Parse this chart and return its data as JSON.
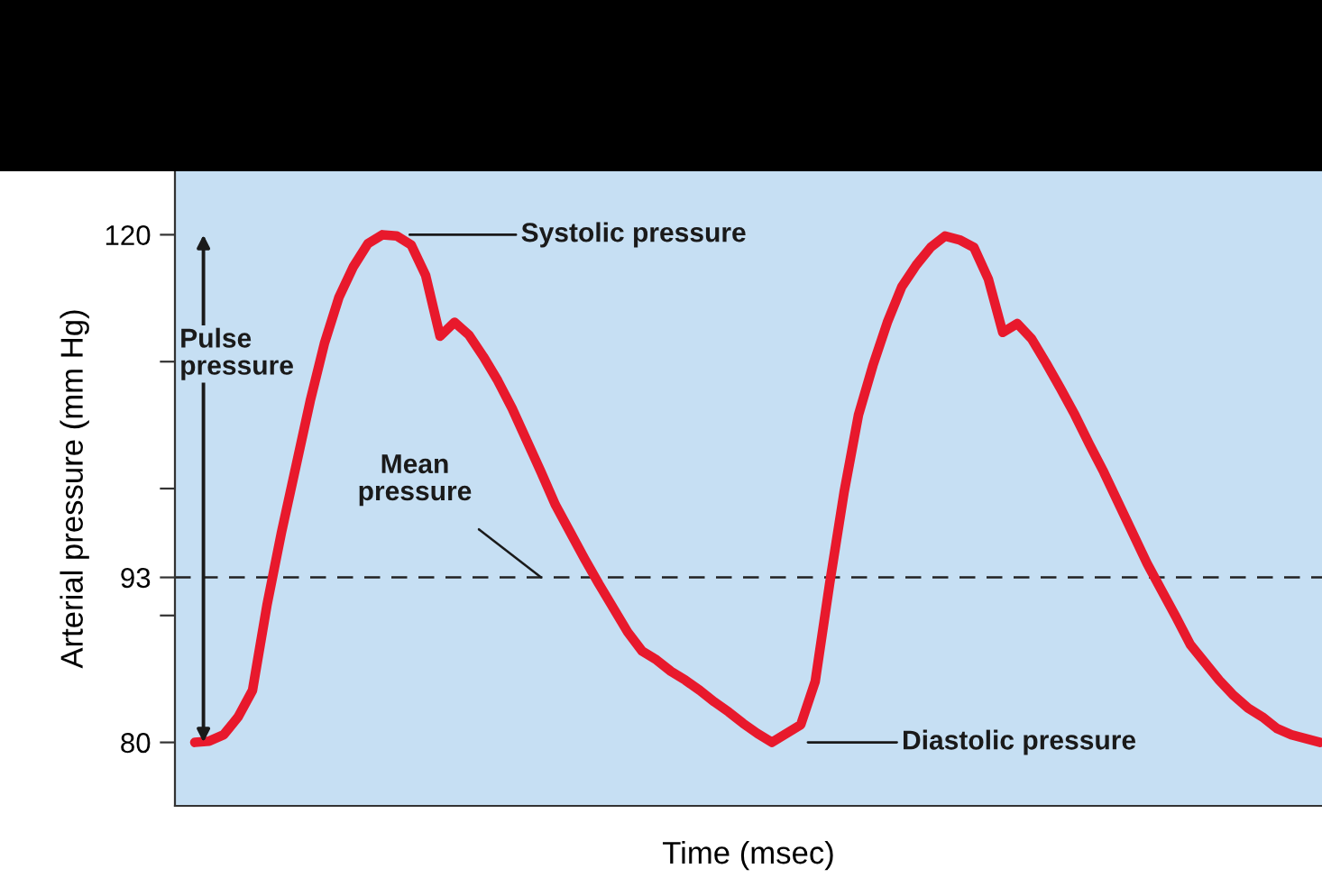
{
  "chart_data": {
    "type": "line",
    "xlabel": "Time (msec)",
    "ylabel": "Arterial pressure (mm Hg)",
    "categories": [
      null,
      null,
      null,
      null,
      null,
      null,
      null,
      null,
      null,
      null,
      null,
      null,
      null,
      null,
      null,
      null,
      null,
      null,
      null,
      null,
      null,
      null,
      null,
      null,
      null,
      null,
      null,
      null,
      null,
      null,
      null,
      null,
      null,
      null,
      null,
      null,
      null,
      null,
      null,
      null,
      null,
      null,
      null,
      null,
      null,
      null,
      null,
      null,
      null,
      null,
      null,
      null,
      null,
      null,
      null,
      null,
      null,
      null,
      null,
      null,
      null,
      null,
      null,
      null,
      null,
      null,
      null,
      null,
      null,
      null,
      null,
      null,
      null,
      null,
      null,
      null,
      null,
      null,
      null
    ],
    "series": [
      {
        "color": "#e8192c",
        "values": [
          80.0,
          80.1,
          80.6,
          82.0,
          84.1,
          90.8,
          96.5,
          101.7,
          106.9,
          111.5,
          115.1,
          117.5,
          119.3,
          120.0,
          119.9,
          119.2,
          116.8,
          112.0,
          113.1,
          112.1,
          110.4,
          108.5,
          106.3,
          103.8,
          101.3,
          98.7,
          96.6,
          94.5,
          92.5,
          90.6,
          88.7,
          87.2,
          86.5,
          85.6,
          84.9,
          84.1,
          83.2,
          82.4,
          81.5,
          80.7,
          80.0,
          80.7,
          81.4,
          84.8,
          92.5,
          99.7,
          105.8,
          109.7,
          113.1,
          115.9,
          117.6,
          119.0,
          119.9,
          119.6,
          119.0,
          116.5,
          112.3,
          113.0,
          111.8,
          109.9,
          107.9,
          105.8,
          103.5,
          101.3,
          98.9,
          96.5,
          94.1,
          92.0,
          89.9,
          87.7,
          86.3,
          84.9,
          83.7,
          82.7,
          82.0,
          81.1,
          80.6,
          80.3,
          80.0
        ]
      }
    ],
    "ylim": [
      75,
      125
    ],
    "yticks": [
      80,
      {
        "value": 90,
        "label": null
      },
      93,
      {
        "value": 100,
        "label": null
      },
      {
        "value": 110,
        "label": null
      },
      120
    ],
    "tick_labels": "y",
    "grid": false,
    "marker": "none",
    "line_style": "solid",
    "ref_lines": [
      {
        "axis": "y",
        "value": 93,
        "label": "Mean pressure",
        "color": "#222222",
        "line_style": "dashed"
      }
    ],
    "annotations": [
      "Systolic pressure",
      "Pulse pressure",
      "Diastolic pressure"
    ]
  }
}
